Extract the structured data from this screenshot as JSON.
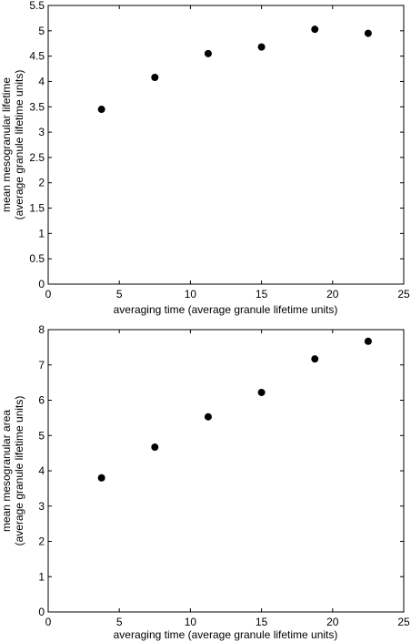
{
  "chart_data": [
    {
      "type": "scatter",
      "title": "",
      "xlabel": "averaging time (average granule lifetime units)",
      "ylabel": [
        "mean mesogranular lifetime",
        "(average granule lifetime units)"
      ],
      "xlim": [
        0,
        25
      ],
      "ylim": [
        0,
        5.5
      ],
      "xticks": [
        0,
        5,
        10,
        15,
        20,
        25
      ],
      "yticks": [
        0,
        0.5,
        1,
        1.5,
        2,
        2.5,
        3,
        3.5,
        4,
        4.5,
        5,
        5.5
      ],
      "grid": false,
      "marker_color": "#000000",
      "x": [
        3.75,
        7.5,
        11.25,
        15,
        18.75,
        22.5
      ],
      "y": [
        3.45,
        4.08,
        4.55,
        4.68,
        5.03,
        4.95
      ]
    },
    {
      "type": "scatter",
      "title": "",
      "xlabel": "averaging time (average granule lifetime units)",
      "ylabel": [
        "mean mesogranular area",
        "(average granule lifetime units)"
      ],
      "xlim": [
        0,
        25
      ],
      "ylim": [
        0,
        8
      ],
      "xticks": [
        0,
        5,
        10,
        15,
        20,
        25
      ],
      "yticks": [
        0,
        1,
        2,
        3,
        4,
        5,
        6,
        7,
        8
      ],
      "grid": false,
      "marker_color": "#000000",
      "x": [
        3.75,
        7.5,
        11.25,
        15,
        18.75,
        22.5
      ],
      "y": [
        3.8,
        4.67,
        5.53,
        6.22,
        7.17,
        7.67
      ]
    }
  ]
}
